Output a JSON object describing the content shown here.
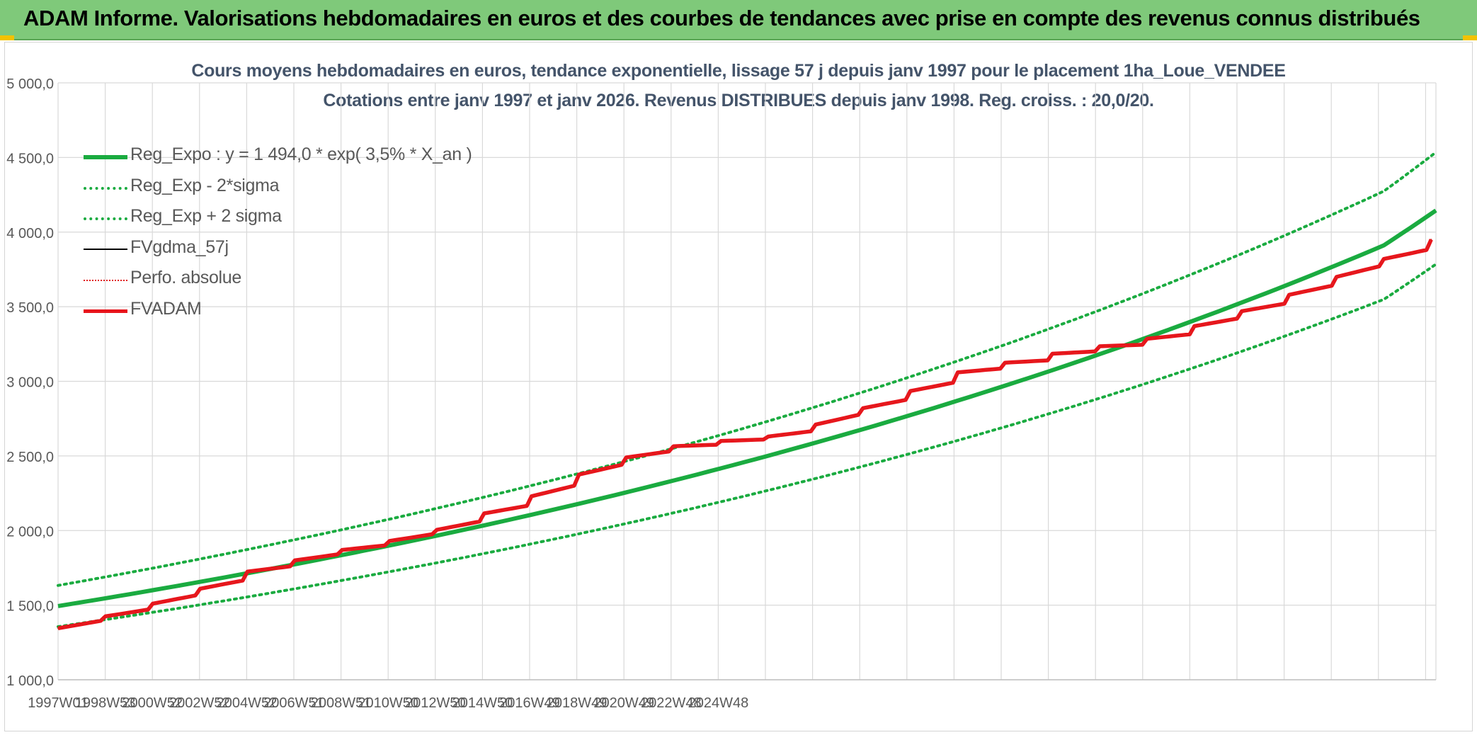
{
  "banner": {
    "title": "ADAM Informe. Valorisations hebdomadaires en euros et des courbes de tendances avec prise en compte des revenus connus distribués"
  },
  "chart_data": {
    "type": "line",
    "title": "Cours moyens hebdomadaires en euros, tendance exponentielle, lissage 57 j depuis janv 1997 pour le placement 1ha_Loue_VENDEE",
    "subtitle": "Cotations entre janv 1997 et janv 2026. Revenus DISTRIBUES depuis janv 1998. Reg. croiss. : 20,0/20.",
    "xlabel": "",
    "ylabel": "",
    "ylim": [
      1000,
      5000
    ],
    "yticks": [
      "1 000,0",
      "1 500,0",
      "2 000,0",
      "2 500,0",
      "3 000,0",
      "3 500,0",
      "4 000,0",
      "4 500,0",
      "5 000,0"
    ],
    "xticks": [
      "1997W01",
      "1998W53",
      "2000W52",
      "2002W52",
      "2004W52",
      "2006W51",
      "2008W51",
      "2010W50",
      "2012W50",
      "2014W50",
      "2016W49",
      "2018W49",
      "2020W49",
      "2022W48",
      "2024W48"
    ],
    "xlim": [
      1997.0,
      2026.1
    ],
    "grid": true,
    "legend_position": "top-left",
    "series": [
      {
        "name": "Reg_Expo : y = 1 494,0 * exp( 3,5% *  X_an )",
        "style": "solid-thick",
        "color": "#1aab40",
        "x": [
          1997,
          1999,
          2001,
          2003,
          2005,
          2007,
          2009,
          2011,
          2013,
          2015,
          2017,
          2019,
          2021,
          2023,
          2025,
          2026.1
        ],
        "values": [
          1494,
          1600,
          1714,
          1836,
          1966,
          2106,
          2256,
          2417,
          2589,
          2773,
          2971,
          3182,
          3409,
          3651,
          3911,
          4145
        ]
      },
      {
        "name": "Reg_Exp - 2*sigma",
        "style": "dotted",
        "color": "#1aab40",
        "x": [
          1997,
          1999,
          2001,
          2003,
          2005,
          2007,
          2009,
          2011,
          2013,
          2015,
          2017,
          2019,
          2021,
          2023,
          2025,
          2026.1
        ],
        "values": [
          1356,
          1452,
          1555,
          1666,
          1784,
          1911,
          2047,
          2193,
          2349,
          2516,
          2695,
          2887,
          3093,
          3313,
          3549,
          3785
        ]
      },
      {
        "name": "Reg_Exp + 2 sigma",
        "style": "dotted",
        "color": "#1aab40",
        "x": [
          1997,
          1999,
          2001,
          2003,
          2005,
          2007,
          2009,
          2011,
          2013,
          2015,
          2017,
          2019,
          2021,
          2023,
          2025,
          2026.1
        ],
        "values": [
          1632,
          1748,
          1873,
          2006,
          2149,
          2302,
          2466,
          2641,
          2829,
          3031,
          3246,
          3477,
          3725,
          3990,
          4274,
          4535
        ]
      },
      {
        "name": "FVgdma_57j",
        "style": "solid-thin",
        "color": "#000000",
        "x": [
          1997.0,
          1997.9,
          1998.0,
          1998.9,
          1999.0,
          1999.9,
          2000.0,
          2000.9,
          2001.0,
          2001.9,
          2002.0,
          2002.9,
          2003.0,
          2003.9,
          2004.0,
          2004.9,
          2005.0,
          2005.9,
          2006.0,
          2006.9,
          2007.0,
          2007.9,
          2008.0,
          2008.9,
          2009.0,
          2009.9,
          2010.0,
          2010.9,
          2011.0,
          2011.9,
          2012.0,
          2012.9,
          2013.0,
          2013.9,
          2014.0,
          2014.9,
          2015.0,
          2015.9,
          2016.0,
          2016.9,
          2017.0,
          2017.9,
          2018.0,
          2018.9,
          2019.0,
          2019.9,
          2020.0,
          2020.9,
          2021.0,
          2021.9,
          2022.0,
          2022.9,
          2023.0,
          2023.9,
          2024.0,
          2024.9,
          2025.0,
          2025.9,
          2026.0
        ],
        "values": [
          1345,
          1395,
          1425,
          1470,
          1510,
          1565,
          1610,
          1665,
          1725,
          1760,
          1800,
          1840,
          1870,
          1900,
          1930,
          1975,
          2005,
          2060,
          2115,
          2165,
          2230,
          2300,
          2375,
          2440,
          2490,
          2530,
          2565,
          2575,
          2600,
          2610,
          2630,
          2665,
          2710,
          2775,
          2820,
          2875,
          2935,
          2990,
          3060,
          3085,
          3125,
          3140,
          3185,
          3200,
          3235,
          3245,
          3285,
          3315,
          3370,
          3420,
          3470,
          3520,
          3580,
          3640,
          3700,
          3770,
          3820,
          3880,
          3950
        ]
      },
      {
        "name": "Perfo. absolue",
        "style": "dotted",
        "color": "#e02020",
        "x": [
          1997.0,
          1997.9,
          1998.0,
          1998.9,
          1999.0,
          1999.9,
          2000.0,
          2000.9,
          2001.0,
          2001.9,
          2002.0,
          2002.9,
          2003.0,
          2003.9,
          2004.0,
          2004.9,
          2005.0,
          2005.9,
          2006.0,
          2006.9,
          2007.0,
          2007.9,
          2008.0,
          2008.9,
          2009.0,
          2009.9,
          2010.0,
          2010.9,
          2011.0,
          2011.9,
          2012.0,
          2012.9,
          2013.0,
          2013.9,
          2014.0,
          2014.9,
          2015.0,
          2015.9,
          2016.0,
          2016.9,
          2017.0,
          2017.9,
          2018.0,
          2018.9,
          2019.0,
          2019.9,
          2020.0,
          2020.9,
          2021.0,
          2021.9,
          2022.0,
          2022.9,
          2023.0,
          2023.9,
          2024.0,
          2024.9,
          2025.0,
          2025.9,
          2026.0
        ],
        "values": [
          1345,
          1395,
          1425,
          1470,
          1510,
          1565,
          1610,
          1665,
          1725,
          1760,
          1800,
          1840,
          1870,
          1900,
          1930,
          1975,
          2005,
          2060,
          2115,
          2165,
          2230,
          2300,
          2375,
          2440,
          2490,
          2530,
          2565,
          2575,
          2600,
          2610,
          2630,
          2665,
          2710,
          2775,
          2820,
          2875,
          2935,
          2990,
          3060,
          3085,
          3125,
          3140,
          3185,
          3200,
          3235,
          3245,
          3285,
          3315,
          3370,
          3420,
          3470,
          3520,
          3580,
          3640,
          3700,
          3770,
          3820,
          3880,
          3950
        ]
      },
      {
        "name": "FVADAM",
        "style": "solid-thick",
        "color": "#e8141b",
        "x": [
          1997.0,
          1997.9,
          1998.0,
          1998.9,
          1999.0,
          1999.9,
          2000.0,
          2000.9,
          2001.0,
          2001.9,
          2002.0,
          2002.9,
          2003.0,
          2003.9,
          2004.0,
          2004.9,
          2005.0,
          2005.9,
          2006.0,
          2006.9,
          2007.0,
          2007.9,
          2008.0,
          2008.9,
          2009.0,
          2009.9,
          2010.0,
          2010.9,
          2011.0,
          2011.9,
          2012.0,
          2012.9,
          2013.0,
          2013.9,
          2014.0,
          2014.9,
          2015.0,
          2015.9,
          2016.0,
          2016.9,
          2017.0,
          2017.9,
          2018.0,
          2018.9,
          2019.0,
          2019.9,
          2020.0,
          2020.9,
          2021.0,
          2021.9,
          2022.0,
          2022.9,
          2023.0,
          2023.9,
          2024.0,
          2024.9,
          2025.0,
          2025.9,
          2026.0
        ],
        "values": [
          1345,
          1395,
          1425,
          1470,
          1510,
          1565,
          1610,
          1665,
          1725,
          1760,
          1800,
          1840,
          1870,
          1900,
          1930,
          1975,
          2005,
          2060,
          2115,
          2165,
          2230,
          2300,
          2375,
          2440,
          2490,
          2530,
          2565,
          2575,
          2600,
          2610,
          2630,
          2665,
          2710,
          2775,
          2820,
          2875,
          2935,
          2990,
          3060,
          3085,
          3125,
          3140,
          3185,
          3200,
          3235,
          3245,
          3285,
          3315,
          3370,
          3420,
          3470,
          3520,
          3580,
          3640,
          3700,
          3770,
          3820,
          3880,
          3950
        ]
      }
    ]
  }
}
